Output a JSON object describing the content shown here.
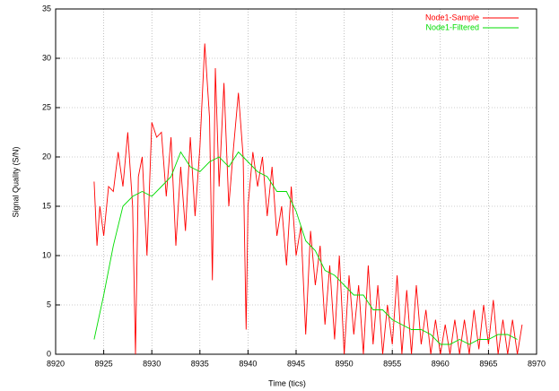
{
  "chart_data": {
    "type": "line",
    "x_label": "Time (tics)",
    "y_label": "Signal Quality (S/N)",
    "xlim": [
      8920,
      8970
    ],
    "xticks": [
      8920,
      8925,
      8930,
      8935,
      8940,
      8945,
      8950,
      8955,
      8960,
      8965,
      8970
    ],
    "ylim": [
      0,
      35
    ],
    "yticks": [
      0,
      5,
      10,
      15,
      20,
      25,
      30,
      35
    ],
    "grid": true,
    "legend": "upper-right",
    "series": [
      {
        "name": "Node1-Sample",
        "color": "#ff0000",
        "x": [
          8924,
          8924.3,
          8924.6,
          8925,
          8925.5,
          8926,
          8926.5,
          8927,
          8927.5,
          8928,
          8928.3,
          8928.6,
          8929,
          8929.5,
          8930,
          8930.5,
          8931,
          8931.5,
          8932,
          8932.5,
          8933,
          8933.5,
          8934,
          8934.5,
          8935,
          8935.5,
          8936,
          8936.3,
          8936.6,
          8937,
          8937.5,
          8938,
          8938.5,
          8939,
          8939.5,
          8939.8,
          8940,
          8940.5,
          8941,
          8941.5,
          8942,
          8942.5,
          8943,
          8943.5,
          8944,
          8944.5,
          8945,
          8945.5,
          8946,
          8946.5,
          8947,
          8947.5,
          8948,
          8948.5,
          8949,
          8949.5,
          8950,
          8950.5,
          8951,
          8951.5,
          8952,
          8952.5,
          8953,
          8953.5,
          8954,
          8954.5,
          8955,
          8955.5,
          8956,
          8956.5,
          8957,
          8957.5,
          8958,
          8958.5,
          8959,
          8959.5,
          8960,
          8960.5,
          8961,
          8961.5,
          8962,
          8962.5,
          8963,
          8963.5,
          8964,
          8964.5,
          8965,
          8965.5,
          8966,
          8966.5,
          8967,
          8967.5,
          8968,
          8968.5
        ],
        "values": [
          17.5,
          11,
          15,
          12,
          17,
          16.5,
          20.5,
          17,
          22.5,
          15,
          0,
          18,
          20,
          10,
          23.5,
          22,
          22.5,
          16,
          22,
          11,
          19,
          12.5,
          22,
          14,
          21,
          31.5,
          24,
          7.5,
          29,
          17,
          27.5,
          15,
          21,
          26.5,
          20,
          2.5,
          15,
          20.5,
          17,
          20,
          14,
          19,
          12,
          15,
          9,
          17,
          10,
          13,
          2,
          12.5,
          7,
          11,
          3,
          9,
          1.5,
          10,
          0,
          8,
          2,
          7,
          0,
          9,
          1,
          7,
          0,
          5,
          1,
          8,
          0,
          6.5,
          0,
          7,
          1,
          4.5,
          0,
          3.5,
          0,
          3,
          0,
          3.5,
          0,
          3.5,
          0,
          4.5,
          0.5,
          5,
          1,
          5.5,
          0,
          3.5,
          0,
          3.5,
          0,
          3
        ]
      },
      {
        "name": "Node1-Filtered",
        "color": "#00dd00",
        "x": [
          8924,
          8925,
          8926,
          8927,
          8928,
          8929,
          8930,
          8931,
          8932,
          8933,
          8934,
          8935,
          8936,
          8937,
          8938,
          8939,
          8940,
          8941,
          8942,
          8943,
          8944,
          8945,
          8946,
          8947,
          8948,
          8949,
          8950,
          8951,
          8952,
          8953,
          8954,
          8955,
          8956,
          8957,
          8958,
          8959,
          8960,
          8961,
          8962,
          8963,
          8964,
          8965,
          8966,
          8967,
          8968
        ],
        "values": [
          1.5,
          6,
          11,
          15,
          16,
          16.5,
          16,
          17,
          18,
          20.5,
          19,
          18.5,
          19.5,
          20,
          19,
          20.5,
          19.5,
          18.5,
          18,
          16.5,
          16.5,
          14.5,
          11.5,
          10.5,
          8.5,
          8,
          7,
          6,
          6,
          4.5,
          4.5,
          3.5,
          3,
          2.5,
          2.5,
          2,
          1,
          1,
          1.5,
          1,
          1.5,
          1.5,
          2,
          2,
          1.5
        ]
      }
    ]
  }
}
